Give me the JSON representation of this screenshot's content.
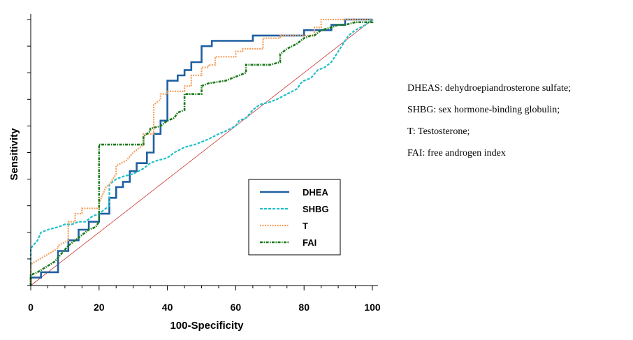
{
  "chart_data": {
    "type": "line",
    "xlabel": "100-Specificity",
    "ylabel": "Sensitivity",
    "xlim": [
      0,
      100
    ],
    "ylim": [
      0,
      100
    ],
    "x_ticks": [
      0,
      20,
      40,
      60,
      80,
      100
    ],
    "grid": false,
    "legend_position": "bottom-right",
    "series": [
      {
        "name": "DHEA",
        "color": "#1f5fa0",
        "style": "solid",
        "x": [
          0,
          0,
          3,
          3,
          8,
          8,
          11,
          11,
          14,
          14,
          17,
          17,
          20,
          20,
          23,
          23,
          25,
          25,
          27,
          27,
          29,
          29,
          31,
          31,
          34,
          34,
          36,
          36,
          38,
          38,
          40,
          40,
          43,
          43,
          45,
          45,
          47,
          47,
          50,
          50,
          53,
          53,
          57,
          57,
          65,
          65,
          80,
          80,
          88,
          88,
          92,
          92,
          100
        ],
        "y": [
          0,
          3,
          3,
          5,
          5,
          13,
          13,
          17,
          17,
          21,
          21,
          24,
          24,
          27,
          27,
          33,
          33,
          37,
          37,
          39,
          39,
          43,
          43,
          46,
          46,
          50,
          50,
          57,
          57,
          62,
          62,
          77,
          77,
          79,
          79,
          81,
          81,
          84,
          84,
          90,
          90,
          92,
          92,
          92,
          92,
          94,
          94,
          96,
          96,
          98,
          98,
          100,
          100
        ]
      },
      {
        "name": "SHBG",
        "color": "#20c0c8",
        "style": "dashed",
        "x": [
          0,
          0,
          2,
          3,
          5,
          8,
          10,
          12,
          14,
          16,
          18,
          20,
          21,
          23,
          23,
          25,
          27,
          30,
          33,
          35,
          37,
          40,
          42,
          45,
          48,
          50,
          52,
          55,
          57,
          60,
          61,
          63,
          65,
          67,
          70,
          72,
          75,
          78,
          79,
          80,
          82,
          84,
          86,
          88,
          90,
          91,
          93,
          95,
          98,
          100
        ],
        "y": [
          0,
          14,
          17,
          20,
          21,
          22,
          23,
          23,
          24,
          24,
          26,
          27,
          28,
          30,
          38,
          40,
          41,
          42,
          44,
          46,
          47,
          48,
          50,
          52,
          53,
          54,
          55,
          57,
          58,
          60,
          62,
          63,
          66,
          68,
          69,
          70,
          72,
          74,
          76,
          77,
          78,
          81,
          82,
          84,
          88,
          90,
          94,
          96,
          98,
          100
        ],
        "note": "x values estimated from plot"
      },
      {
        "name": "T",
        "color": "#f5a060",
        "style": "dotted",
        "x": [
          0,
          0,
          8,
          8,
          11,
          11,
          13,
          13,
          15,
          15,
          20,
          20,
          22,
          23,
          25,
          25,
          28,
          30,
          33,
          33,
          36,
          36,
          38,
          38,
          40,
          40,
          45,
          45,
          47,
          47,
          50,
          50,
          52,
          52,
          54,
          54,
          60,
          60,
          62,
          62,
          68,
          68,
          73,
          73,
          83,
          83,
          85,
          85,
          100
        ],
        "y": [
          0,
          8,
          14,
          15,
          17,
          24,
          24,
          27,
          27,
          29,
          29,
          31,
          37,
          38,
          42,
          45,
          47,
          50,
          53,
          57,
          57,
          68,
          70,
          72,
          72,
          73,
          73,
          75,
          75,
          79,
          79,
          82,
          82,
          83,
          83,
          86,
          86,
          88,
          88,
          89,
          89,
          93,
          93,
          94,
          94,
          97,
          97,
          100,
          100
        ],
        "note": "x values estimated from plot"
      },
      {
        "name": "FAI",
        "color": "#1a7a1a",
        "style": "dash-dot",
        "x": [
          0,
          0,
          2,
          7,
          9,
          11,
          13,
          15,
          17,
          19,
          20,
          20,
          33,
          33,
          35,
          35,
          38,
          40,
          42,
          43,
          45,
          45,
          47,
          50,
          50,
          52,
          57,
          63,
          63,
          70,
          73,
          73,
          75,
          78,
          79,
          80,
          82,
          83,
          85,
          88,
          90,
          92,
          95,
          98,
          100,
          100
        ],
        "y": [
          0,
          4,
          5,
          9,
          12,
          15,
          17,
          19,
          21,
          22,
          24,
          53,
          53,
          56,
          58,
          59,
          60,
          62,
          63,
          65,
          66,
          72,
          72,
          72,
          75,
          76,
          77,
          80,
          83,
          83,
          84,
          87,
          89,
          91,
          92,
          93,
          94,
          94,
          96,
          97,
          98,
          98,
          99,
          99,
          99,
          100
        ],
        "note": "x values estimated from plot"
      },
      {
        "name": "",
        "color": "#cc3333",
        "style": "reference-diagonal",
        "x": [
          0,
          100
        ],
        "y": [
          0,
          100
        ]
      }
    ]
  },
  "notes": [
    "DHEAS:  dehydroepiandrosterone sulfate;",
    "SHBG:  sex hormone-binding globulin;",
    "T: Testosterone;",
    "FAI:  free androgen index"
  ]
}
